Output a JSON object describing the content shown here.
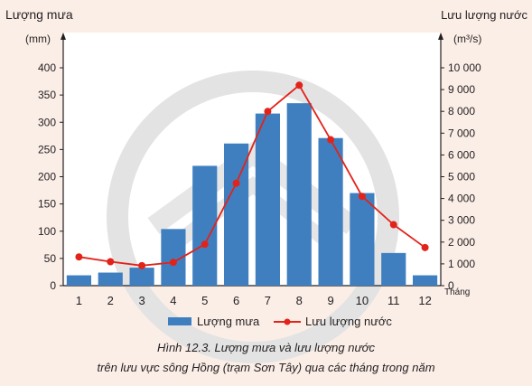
{
  "chart_data": {
    "type": "bar+line",
    "categories": [
      "1",
      "2",
      "3",
      "4",
      "5",
      "6",
      "7",
      "8",
      "9",
      "10",
      "11",
      "12"
    ],
    "x_unit_label": "Tháng",
    "left_axis": {
      "title": "Lượng mưa",
      "unit": "(mm)",
      "ylim": [
        0,
        400
      ],
      "ticks": [
        "0",
        "50",
        "100",
        "150",
        "200",
        "250",
        "300",
        "350",
        "400"
      ]
    },
    "right_axis": {
      "title": "Lưu lượng nước",
      "unit": "(m³/s)",
      "ylim": [
        0,
        10000
      ],
      "ticks": [
        "0",
        "1 000",
        "2 000",
        "3 000",
        "4 000",
        "5 000",
        "6 000",
        "7 000",
        "8 000",
        "9 000",
        "10 000"
      ]
    },
    "series": [
      {
        "name": "Lượng mưa",
        "kind": "bar",
        "axis": "left",
        "color": "#3f7fc0",
        "values": [
          19,
          24,
          33,
          104,
          220,
          261,
          316,
          335,
          271,
          170,
          60,
          19
        ]
      },
      {
        "name": "Lưu lượng nước",
        "kind": "line",
        "axis": "right",
        "color": "#e2231a",
        "values": [
          1320,
          1100,
          920,
          1070,
          1900,
          4700,
          8000,
          9200,
          6700,
          4100,
          2800,
          1750
        ]
      }
    ],
    "legend_position": "bottom",
    "grid": false
  },
  "caption": {
    "line1": "Hình 12.3. Lượng mưa và lưu lượng nước",
    "line2": "trên lưu vực sông Hồng (trạm Sơn Tây) qua các tháng trong năm"
  },
  "colors": {
    "background": "#fbeee7",
    "plot_background": "#ffffff",
    "watermark": "#dedede"
  }
}
